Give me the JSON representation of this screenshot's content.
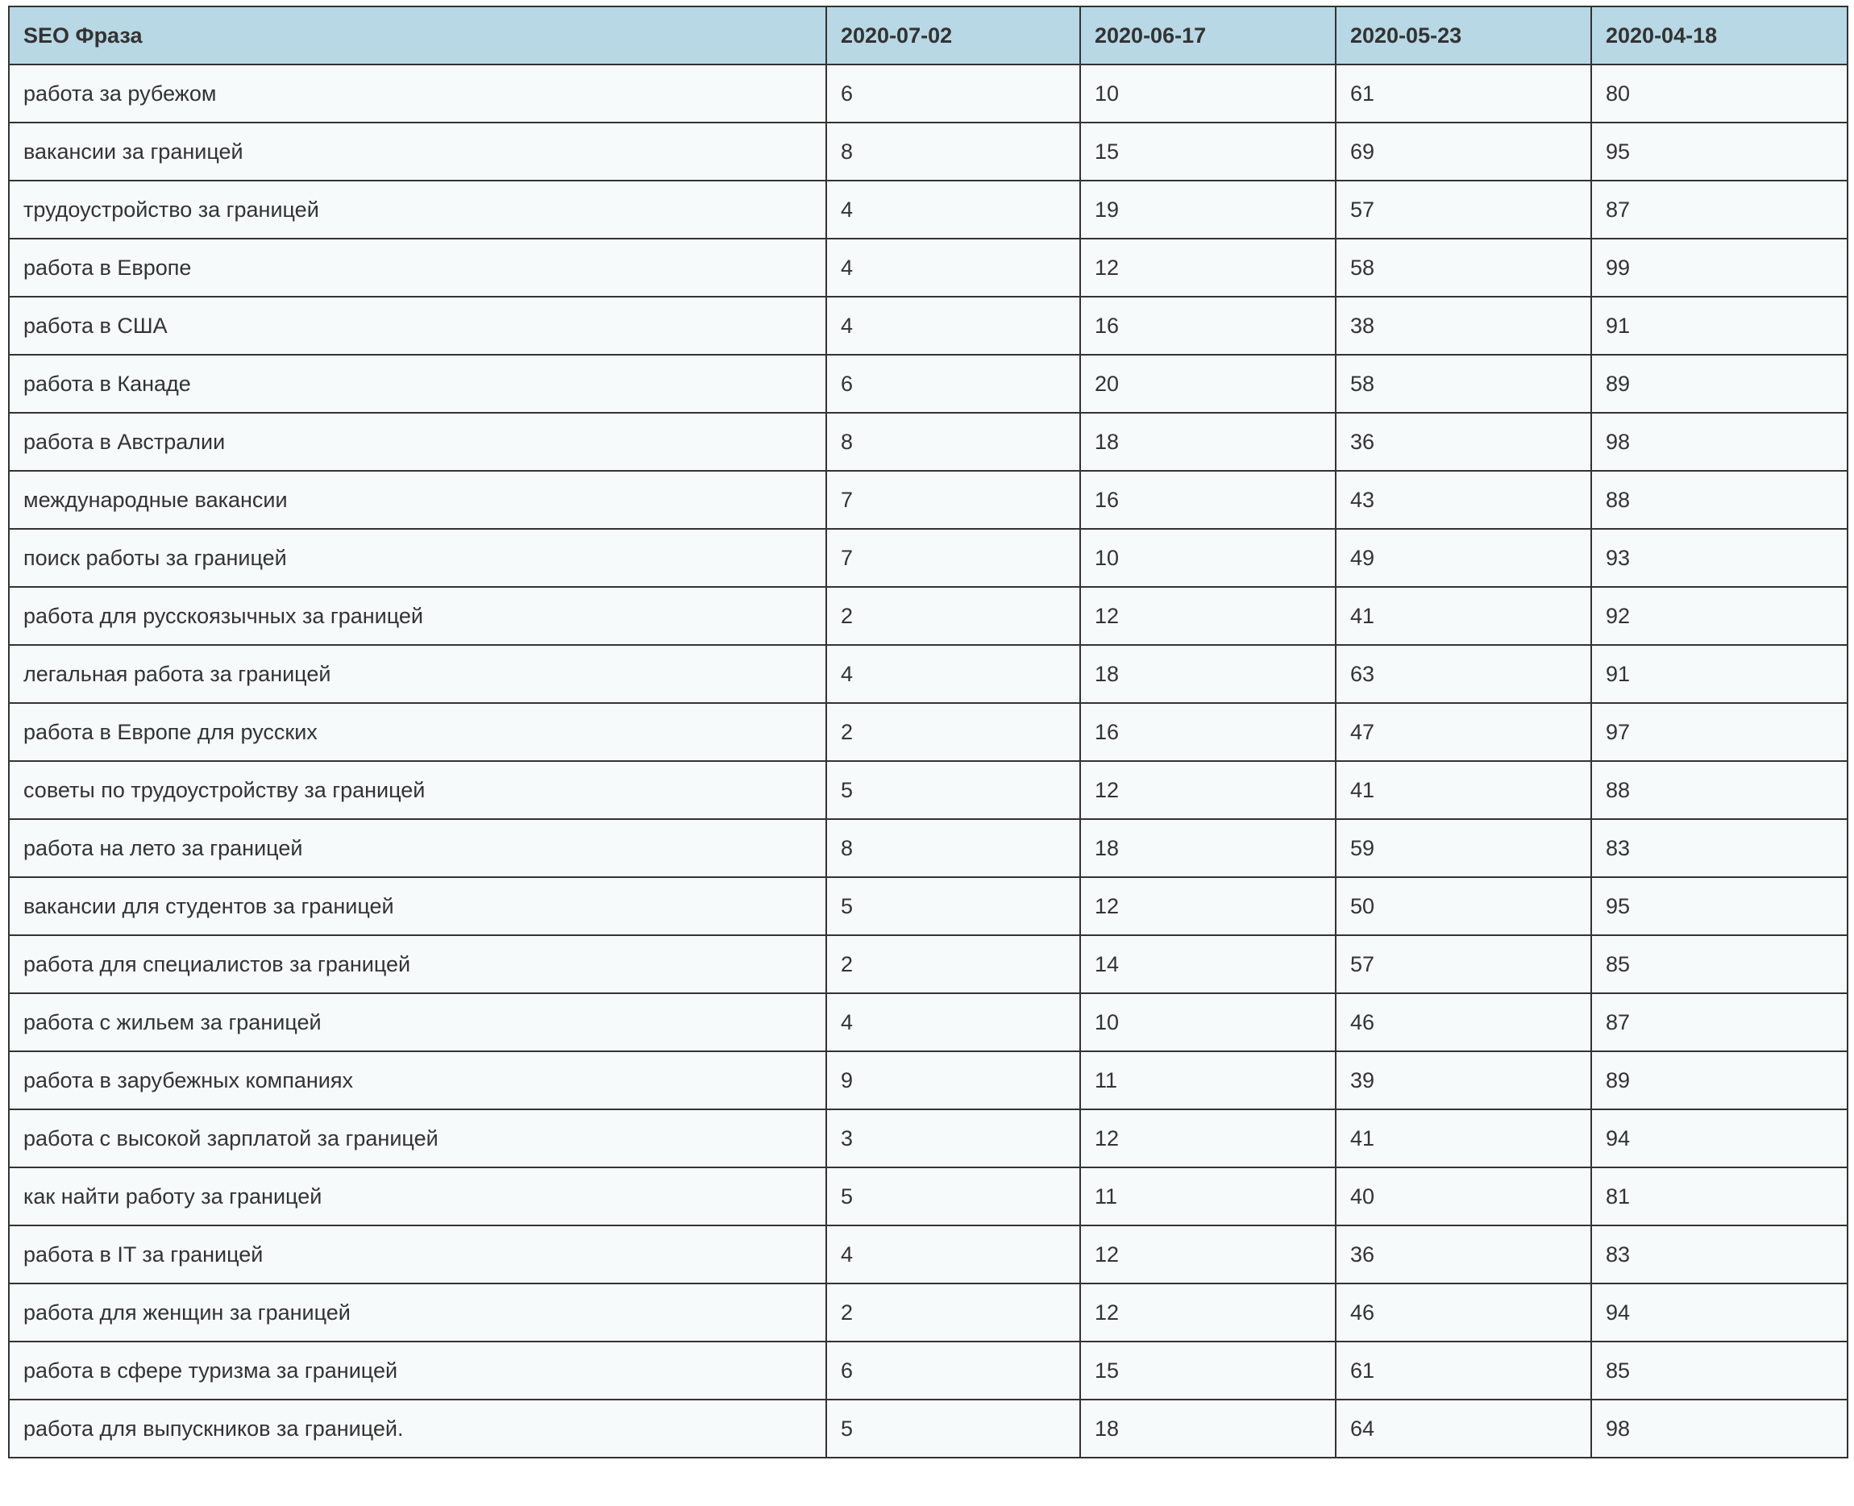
{
  "table": {
    "columns": [
      "SEO Фраза",
      "2020-07-02",
      "2020-06-17",
      "2020-05-23",
      "2020-04-18"
    ],
    "rows": [
      [
        "работа за рубежом",
        6,
        10,
        61,
        80
      ],
      [
        "вакансии за границей",
        8,
        15,
        69,
        95
      ],
      [
        "трудоустройство за границей",
        4,
        19,
        57,
        87
      ],
      [
        "работа в Европе",
        4,
        12,
        58,
        99
      ],
      [
        "работа в США",
        4,
        16,
        38,
        91
      ],
      [
        "работа в Канаде",
        6,
        20,
        58,
        89
      ],
      [
        "работа в Австралии",
        8,
        18,
        36,
        98
      ],
      [
        "международные вакансии",
        7,
        16,
        43,
        88
      ],
      [
        "поиск работы за границей",
        7,
        10,
        49,
        93
      ],
      [
        "работа для русскоязычных за границей",
        2,
        12,
        41,
        92
      ],
      [
        "легальная работа за границей",
        4,
        18,
        63,
        91
      ],
      [
        "работа в Европе для русских",
        2,
        16,
        47,
        97
      ],
      [
        "советы по трудоустройству за границей",
        5,
        12,
        41,
        88
      ],
      [
        "работа на лето за границей",
        8,
        18,
        59,
        83
      ],
      [
        "вакансии для студентов за границей",
        5,
        12,
        50,
        95
      ],
      [
        "работа для специалистов за границей",
        2,
        14,
        57,
        85
      ],
      [
        "работа с жильем за границей",
        4,
        10,
        46,
        87
      ],
      [
        "работа в зарубежных компаниях",
        9,
        11,
        39,
        89
      ],
      [
        "работа с высокой зарплатой за границей",
        3,
        12,
        41,
        94
      ],
      [
        "как найти работу за границей",
        5,
        11,
        40,
        81
      ],
      [
        "работа в IT за границей",
        4,
        12,
        36,
        83
      ],
      [
        "работа для женщин за границей",
        2,
        12,
        46,
        94
      ],
      [
        "работа в сфере туризма за границей",
        6,
        15,
        61,
        85
      ],
      [
        "работа для выпускников за границей.",
        5,
        18,
        64,
        98
      ]
    ]
  }
}
